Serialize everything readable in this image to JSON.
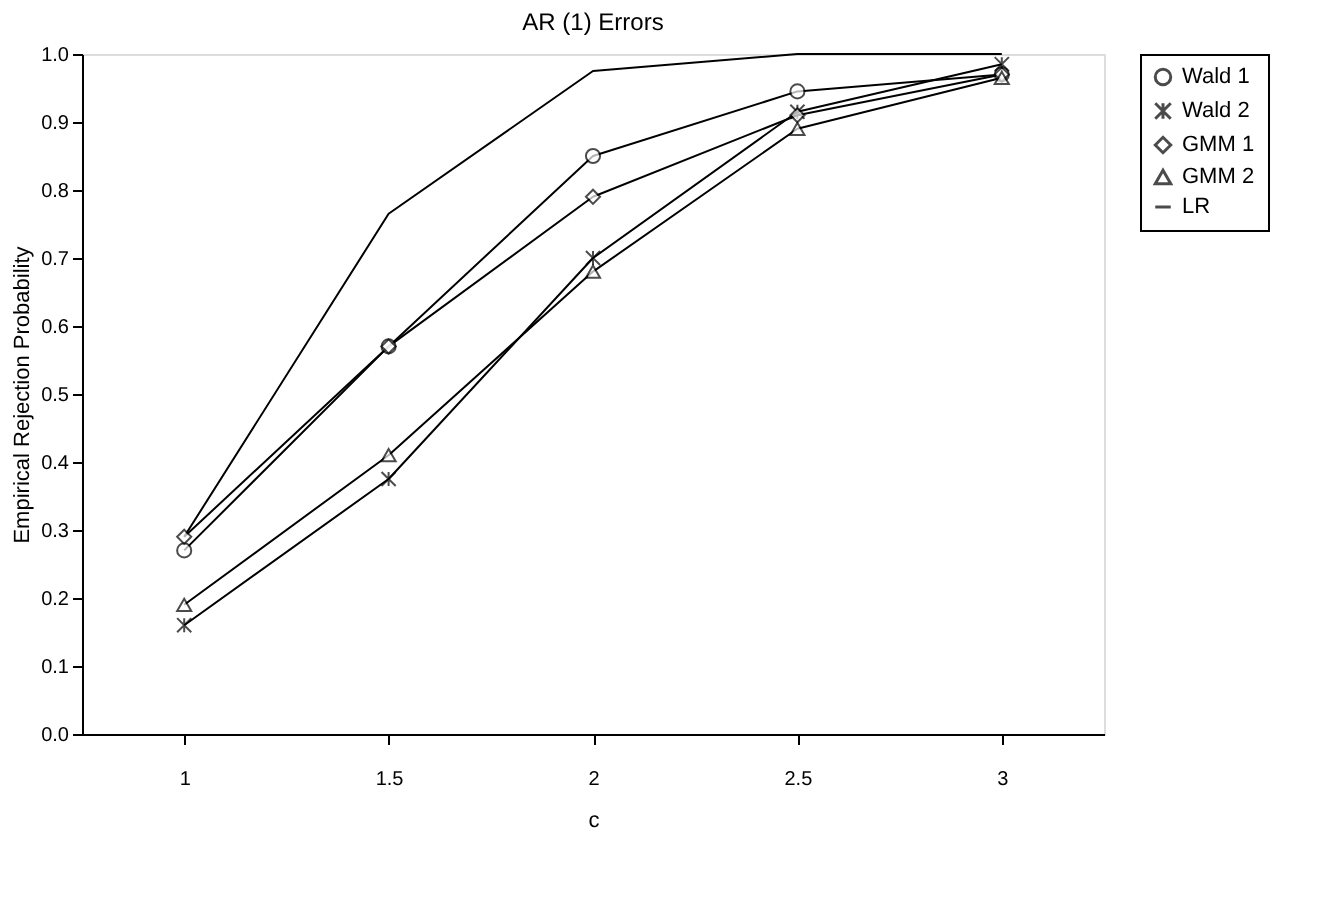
{
  "chart_data": {
    "type": "line",
    "title": "AR (1) Errors",
    "xlabel": "c",
    "ylabel": "Empirical Rejection Probability",
    "categories": [
      "1",
      "1.5",
      "2",
      "2.5",
      "3"
    ],
    "ylim": [
      0,
      1
    ],
    "yticks": [
      {
        "value": 0,
        "label": "0.0"
      },
      {
        "value": 0.1,
        "label": "0.1"
      },
      {
        "value": 0.2,
        "label": "0.2"
      },
      {
        "value": 0.3,
        "label": "0.3"
      },
      {
        "value": 0.4,
        "label": "0.4"
      },
      {
        "value": 0.5,
        "label": "0.5"
      },
      {
        "value": 0.6,
        "label": "0.6"
      },
      {
        "value": 0.7,
        "label": "0.7"
      },
      {
        "value": 0.8,
        "label": "0.8"
      },
      {
        "value": 0.9,
        "label": "0.9"
      },
      {
        "value": 1,
        "label": "1.0"
      }
    ],
    "grid": false,
    "legend": "right",
    "line_style": "solid",
    "series": [
      {
        "name": "Wald 1",
        "color": "#000000",
        "marker": "circle",
        "values": [
          0.27,
          0.57,
          0.85,
          0.945,
          0.97
        ]
      },
      {
        "name": "Wald 2",
        "color": "#000000",
        "marker": "cross",
        "values": [
          0.16,
          0.375,
          0.7,
          0.915,
          0.985
        ]
      },
      {
        "name": "GMM 1",
        "color": "#000000",
        "marker": "diamond",
        "values": [
          0.29,
          0.57,
          0.79,
          0.91,
          0.97
        ]
      },
      {
        "name": "GMM 2",
        "color": "#000000",
        "marker": "triangle",
        "values": [
          0.19,
          0.41,
          0.68,
          0.89,
          0.965
        ]
      },
      {
        "name": "LR",
        "color": "#000000",
        "marker": "none",
        "values": [
          0.29,
          0.765,
          0.975,
          1.0,
          1.0
        ]
      }
    ]
  }
}
